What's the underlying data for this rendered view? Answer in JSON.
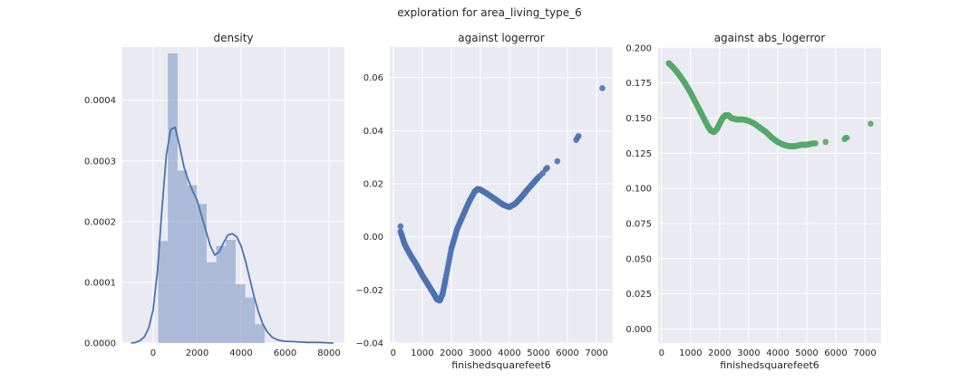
{
  "suptitle": "exploration for area_living_type_6",
  "colors": {
    "blue": "#4C72B0",
    "green": "#55A868",
    "hist_fill": "#4C72B0",
    "background": "#EAEAF2",
    "grid": "#FFFFFF"
  },
  "chart_data": [
    {
      "type": "bar",
      "title": "density",
      "xlabel": "",
      "ylabel": "",
      "xlim": [
        -1400,
        8700
      ],
      "ylim": [
        0,
        0.0004875
      ],
      "xticks": [
        0,
        2000,
        4000,
        6000,
        8000
      ],
      "xtick_labels": [
        "0",
        "2000",
        "4000",
        "6000",
        "8000"
      ],
      "yticks": [
        0,
        0.0001,
        0.0002,
        0.0003,
        0.0004
      ],
      "ytick_labels": [
        "0.0000",
        "0.0001",
        "0.0002",
        "0.0003",
        "0.0004"
      ],
      "grid": true,
      "histogram": {
        "bin_edges": [
          230,
          670,
          1110,
          1550,
          1990,
          2430,
          2870,
          3310,
          3750,
          4190,
          4630,
          5070
        ],
        "values": [
          0.000168,
          0.000477,
          0.000284,
          0.00026,
          0.000229,
          0.000133,
          0.00016,
          0.00017,
          9.7e-05,
          7.5e-05,
          3.1e-05
        ]
      },
      "kde": {
        "x": [
          -1000,
          -800,
          -600,
          -400,
          -200,
          0,
          200,
          400,
          600,
          800,
          1000,
          1200,
          1400,
          1600,
          1800,
          2000,
          2200,
          2400,
          2600,
          2800,
          3000,
          3200,
          3400,
          3600,
          3800,
          4000,
          4200,
          4400,
          4600,
          4800,
          5000,
          5200,
          5400,
          5600,
          5800,
          6000,
          6500,
          7000,
          7500,
          8200
        ],
        "y": [
          0,
          1e-06,
          4e-06,
          1e-05,
          2.5e-05,
          5.5e-05,
          0.00012,
          0.00022,
          0.00031,
          0.000352,
          0.000355,
          0.000325,
          0.00029,
          0.000268,
          0.00025,
          0.000235,
          0.00021,
          0.000185,
          0.00016,
          0.000145,
          0.00015,
          0.000165,
          0.000178,
          0.00018,
          0.000175,
          0.00016,
          0.000135,
          0.000105,
          7.5e-05,
          5e-05,
          3e-05,
          1.8e-05,
          1e-05,
          6e-06,
          4e-06,
          3e-06,
          2e-06,
          1e-06,
          1e-06,
          0
        ]
      }
    },
    {
      "type": "scatter",
      "title": "against logerror",
      "xlabel": "finishedsquarefeet6",
      "ylabel": "",
      "xlim": [
        -120,
        7560
      ],
      "ylim": [
        -0.04,
        0.0715
      ],
      "xticks": [
        0,
        1000,
        2000,
        3000,
        4000,
        5000,
        6000,
        7000
      ],
      "xtick_labels": [
        "0",
        "1000",
        "2000",
        "3000",
        "4000",
        "5000",
        "6000",
        "7000"
      ],
      "yticks": [
        -0.04,
        -0.02,
        0.0,
        0.02,
        0.04,
        0.06
      ],
      "ytick_labels": [
        "−0.04",
        "−0.02",
        "0.00",
        "0.02",
        "0.04",
        "0.06"
      ],
      "grid": true,
      "series": [
        {
          "curve": {
            "x": [
              250,
              400,
              600,
              800,
              1000,
              1200,
              1400,
              1500,
              1600,
              1700,
              1800,
              2000,
              2200,
              2400,
              2600,
              2800,
              2900,
              3000,
              3200,
              3400,
              3600,
              3800,
              4000,
              4200,
              4400,
              4600,
              4800,
              5000
            ],
            "y": [
              0.002,
              -0.003,
              -0.007,
              -0.0105,
              -0.0145,
              -0.018,
              -0.0215,
              -0.0235,
              -0.024,
              -0.0215,
              -0.016,
              -0.0045,
              0.003,
              0.008,
              0.013,
              0.017,
              0.018,
              0.0178,
              0.0165,
              0.015,
              0.0135,
              0.012,
              0.0112,
              0.0125,
              0.0148,
              0.0175,
              0.02,
              0.0225
            ]
          },
          "points": {
            "x": [
              250,
              5050,
              5150,
              5250,
              5300,
              5650,
              6300,
              6350,
              6380,
              7200
            ],
            "y": [
              0.004,
              0.023,
              0.024,
              0.0255,
              0.026,
              0.0285,
              0.0365,
              0.0375,
              0.038,
              0.056
            ]
          }
        }
      ]
    },
    {
      "type": "scatter",
      "title": "against abs_logerror",
      "xlabel": "finishedsquarefeet6",
      "ylabel": "",
      "xlim": [
        -120,
        7560
      ],
      "ylim": [
        -0.01,
        0.2005
      ],
      "xticks": [
        0,
        1000,
        2000,
        3000,
        4000,
        5000,
        6000,
        7000
      ],
      "xtick_labels": [
        "0",
        "1000",
        "2000",
        "3000",
        "4000",
        "5000",
        "6000",
        "7000"
      ],
      "yticks": [
        0.0,
        0.025,
        0.05,
        0.075,
        0.1,
        0.125,
        0.15,
        0.175,
        0.2
      ],
      "ytick_labels": [
        "0.000",
        "0.025",
        "0.050",
        "0.075",
        "0.100",
        "0.125",
        "0.150",
        "0.175",
        "0.200"
      ],
      "grid": true,
      "series": [
        {
          "curve": {
            "x": [
              250,
              400,
              600,
              800,
              1000,
              1200,
              1400,
              1600,
              1700,
              1800,
              1900,
              2000,
              2100,
              2200,
              2300,
              2400,
              2600,
              2800,
              3000,
              3200,
              3400,
              3600,
              3800,
              4000,
              4200,
              4400,
              4600,
              4800,
              5000,
              5200
            ],
            "y": [
              0.189,
              0.186,
              0.181,
              0.175,
              0.168,
              0.16,
              0.152,
              0.144,
              0.141,
              0.14,
              0.142,
              0.146,
              0.15,
              0.152,
              0.152,
              0.15,
              0.149,
              0.149,
              0.148,
              0.146,
              0.143,
              0.14,
              0.136,
              0.133,
              0.131,
              0.13,
              0.13,
              0.131,
              0.131,
              0.132
            ]
          },
          "points": {
            "x": [
              250,
              5250,
              5300,
              5650,
              6300,
              6350,
              6380,
              7200
            ],
            "y": [
              0.189,
              0.132,
              0.132,
              0.133,
              0.135,
              0.136,
              0.136,
              0.146
            ]
          }
        }
      ]
    }
  ]
}
